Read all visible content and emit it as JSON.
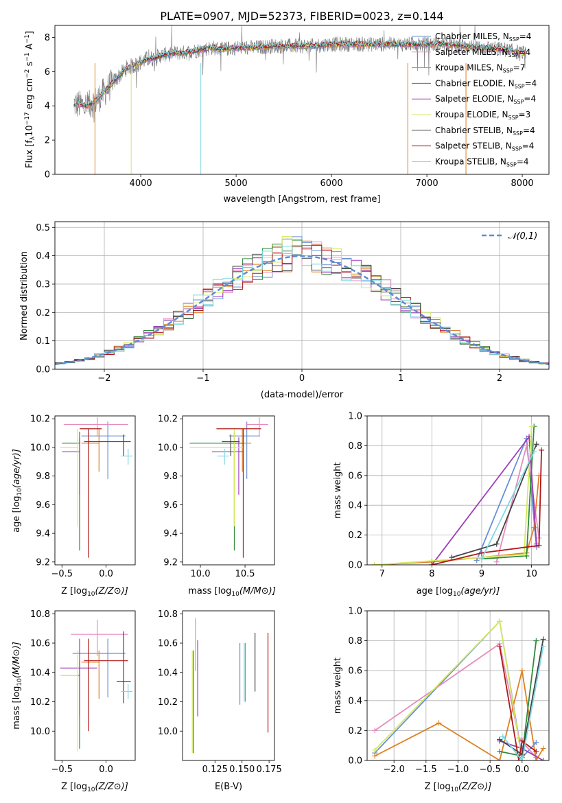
{
  "title": "PLATE=0907, MJD=52373, FIBERID=0023, z=0.144",
  "colors": {
    "Chabrier MILES": "#6a8fd6",
    "Salpeter MILES": "#e58cbf",
    "Kroupa MILES": "#dd8022",
    "Chabrier ELODIE": "#2f8a3a",
    "Salpeter ELODIE": "#9d3bb8",
    "Kroupa ELODIE": "#d5ea60",
    "Chabrier STELIB": "#444444",
    "Salpeter STELIB": "#b01818",
    "Kroupa STELIB": "#7fd9e2",
    "data": "#808080",
    "gaussian": "#5b8bd4"
  },
  "chart_data": [
    {
      "type": "line",
      "panel": "spectrum",
      "xlabel": "wavelength [Angstrom, rest frame]",
      "ylabel_parts": [
        "Flux [f",
        "λ",
        "10",
        "−17",
        " erg cm",
        "−2",
        " s",
        "−1",
        " A",
        "−1",
        "]"
      ],
      "xlim": [
        3100,
        8280
      ],
      "ylim": [
        0,
        8.7
      ],
      "xticks": [
        4000,
        5000,
        6000,
        7000,
        8000
      ],
      "yticks": [
        0,
        2,
        4,
        6,
        8
      ],
      "legend_position": "upper-right",
      "legend": [
        {
          "name": "Chabrier MILES, N",
          "sub": "SSP",
          "tail": "=4"
        },
        {
          "name": "Salpeter MILES, N",
          "sub": "SSP",
          "tail": "=4"
        },
        {
          "name": "Kroupa MILES, N",
          "sub": "SSP",
          "tail": "=7"
        },
        {
          "name": "Chabrier ELODIE, N",
          "sub": "SSP",
          "tail": "=4"
        },
        {
          "name": "Salpeter ELODIE, N",
          "sub": "SSP",
          "tail": "=4"
        },
        {
          "name": "Kroupa ELODIE, N",
          "sub": "SSP",
          "tail": "=3"
        },
        {
          "name": "Chabrier STELIB, N",
          "sub": "SSP",
          "tail": "=4"
        },
        {
          "name": "Salpeter STELIB, N",
          "sub": "SSP",
          "tail": "=4"
        },
        {
          "name": "Kroupa STELIB, N",
          "sub": "SSP",
          "tail": "=4"
        }
      ],
      "continuum": {
        "x": [
          3300,
          3450,
          3550,
          3650,
          3750,
          3850,
          3950,
          4050,
          4150,
          4250,
          4350,
          4450,
          4550,
          4650,
          4750,
          4850,
          5000,
          5200,
          5400,
          5600,
          5800,
          6000,
          6200,
          6400,
          6600,
          6800,
          7000,
          7200,
          7400,
          7600,
          7800,
          8000
        ],
        "y": [
          4.1,
          4.0,
          4.4,
          5.0,
          5.6,
          6.2,
          6.4,
          6.7,
          6.8,
          7.0,
          7.1,
          7.1,
          7.2,
          7.3,
          7.4,
          7.3,
          7.4,
          7.4,
          7.5,
          7.5,
          7.5,
          7.6,
          7.6,
          7.6,
          7.6,
          7.6,
          7.6,
          7.6,
          7.5,
          7.4,
          7.3,
          7.1
        ]
      }
    },
    {
      "type": "histogram",
      "panel": "residuals",
      "xlabel": "(data-model)/error",
      "ylabel": "Normed distribution",
      "xlim": [
        -2.5,
        2.5
      ],
      "ylim": [
        0,
        0.52
      ],
      "xticks": [
        -2,
        -1,
        0,
        1,
        2
      ],
      "yticks": [
        0.0,
        0.1,
        0.2,
        0.3,
        0.4,
        0.5
      ],
      "bin_width": 0.1,
      "legend": "𝒩(0,1)",
      "legend_position": "upper-right",
      "grid": true
    },
    {
      "type": "errorbar",
      "panel": "age-vs-Z",
      "xlabel": "Z [log10(Z/Z⊙)]",
      "ylabel": "age  [log10(age/yr)]",
      "xlim": [
        -0.58,
        0.33
      ],
      "ylim": [
        9.18,
        10.22
      ],
      "xticks": [
        -0.5,
        0.0
      ],
      "yticks": [
        9.2,
        9.4,
        9.6,
        9.8,
        10.0,
        10.2
      ],
      "points": [
        {
          "model": "Chabrier MILES",
          "x": 0.02,
          "xerr": [
            0.3,
            0.2
          ],
          "y": 10.08,
          "yerr": [
            0.3,
            0.1
          ]
        },
        {
          "model": "Salpeter MILES",
          "x": -0.1,
          "xerr": [
            0.38,
            0.35
          ],
          "y": 10.16,
          "yerr": [
            0.08,
            0.05
          ]
        },
        {
          "model": "Kroupa MILES",
          "x": -0.08,
          "xerr": [
            0.2,
            0.0
          ],
          "y": 10.03,
          "yerr": [
            0.2,
            0.1
          ]
        },
        {
          "model": "Chabrier ELODIE",
          "x": -0.3,
          "xerr": [
            0.2,
            0.0
          ],
          "y": 10.03,
          "yerr": [
            0.75,
            0.08
          ]
        },
        {
          "model": "Salpeter ELODIE",
          "x": -0.3,
          "xerr": [
            0.2,
            0.0
          ],
          "y": 9.97,
          "yerr": [
            0.3,
            0.1
          ]
        },
        {
          "model": "Kroupa ELODIE",
          "x": -0.32,
          "xerr": [
            0.2,
            0.0
          ],
          "y": 10.0,
          "yerr": [
            0.55,
            0.13
          ]
        },
        {
          "model": "Chabrier STELIB",
          "x": 0.2,
          "xerr": [
            0.45,
            0.08
          ],
          "y": 10.04,
          "yerr": [
            0.1,
            0.05
          ]
        },
        {
          "model": "Salpeter STELIB",
          "x": -0.2,
          "xerr": [
            0.1,
            0.15
          ],
          "y": 10.13,
          "yerr": [
            0.9,
            0.0
          ]
        },
        {
          "model": "Kroupa STELIB",
          "x": 0.25,
          "xerr": [
            0.08,
            0.05
          ],
          "y": 9.94,
          "yerr": [
            0.06,
            0.05
          ]
        }
      ]
    },
    {
      "type": "errorbar",
      "panel": "age-vs-mass",
      "xlabel": "mass [log10(M/M⊙)]",
      "ylabel": "",
      "xlim": [
        9.8,
        10.83
      ],
      "ylim": [
        9.18,
        10.22
      ],
      "xticks": [
        10.0,
        10.5
      ],
      "yticks": [
        9.2,
        9.4,
        9.6,
        9.8,
        10.0,
        10.2
      ],
      "points": [
        {
          "model": "Chabrier MILES",
          "x": 10.52,
          "xerr": [
            0.2,
            0.15
          ],
          "y": 10.08,
          "yerr": [
            0.3,
            0.1
          ]
        },
        {
          "model": "Salpeter MILES",
          "x": 10.66,
          "xerr": [
            0.15,
            0.1
          ],
          "y": 10.16,
          "yerr": [
            0.08,
            0.05
          ]
        },
        {
          "model": "Kroupa MILES",
          "x": 10.47,
          "xerr": [
            0.1,
            0.1
          ],
          "y": 10.03,
          "yerr": [
            0.2,
            0.1
          ]
        },
        {
          "model": "Chabrier ELODIE",
          "x": 10.38,
          "xerr": [
            0.5,
            0.1
          ],
          "y": 10.03,
          "yerr": [
            0.75,
            0.08
          ]
        },
        {
          "model": "Salpeter ELODIE",
          "x": 10.43,
          "xerr": [
            0.3,
            0.05
          ],
          "y": 9.97,
          "yerr": [
            0.3,
            0.1
          ]
        },
        {
          "model": "Kroupa ELODIE",
          "x": 10.38,
          "xerr": [
            0.5,
            0.1
          ],
          "y": 10.0,
          "yerr": [
            0.55,
            0.13
          ]
        },
        {
          "model": "Chabrier STELIB",
          "x": 10.34,
          "xerr": [
            0.1,
            0.1
          ],
          "y": 10.04,
          "yerr": [
            0.1,
            0.05
          ]
        },
        {
          "model": "Salpeter STELIB",
          "x": 10.48,
          "xerr": [
            0.3,
            0.2
          ],
          "y": 10.13,
          "yerr": [
            0.9,
            0.0
          ]
        },
        {
          "model": "Kroupa STELIB",
          "x": 10.27,
          "xerr": [
            0.08,
            0.05
          ],
          "y": 9.94,
          "yerr": [
            0.06,
            0.05
          ]
        }
      ]
    },
    {
      "type": "line",
      "panel": "massweight-vs-age",
      "xlabel": "age  [log10(age/yr)]",
      "ylabel": "mass weight",
      "xlim": [
        6.7,
        10.35
      ],
      "ylim": [
        0,
        1.0
      ],
      "xticks": [
        7,
        8,
        9,
        10
      ],
      "yticks": [
        0.0,
        0.2,
        0.4,
        0.6,
        0.8,
        1.0
      ],
      "grid": true,
      "series": [
        {
          "model": "Chabrier MILES",
          "x": [
            8.9,
            9.9,
            10.1
          ],
          "y": [
            0.03,
            0.85,
            0.12
          ]
        },
        {
          "model": "Salpeter MILES",
          "x": [
            9.3,
            9.9,
            10.15
          ],
          "y": [
            0.02,
            0.8,
            0.18
          ]
        },
        {
          "model": "Kroupa MILES",
          "x": [
            6.85,
            8.0,
            9.0,
            9.9,
            10.05,
            10.15
          ],
          "y": [
            0.0,
            0.02,
            0.05,
            0.08,
            0.25,
            0.6
          ]
        },
        {
          "model": "Chabrier ELODIE",
          "x": [
            9.0,
            9.9,
            10.05
          ],
          "y": [
            0.04,
            0.06,
            0.93
          ]
        },
        {
          "model": "Salpeter ELODIE",
          "x": [
            8.0,
            9.95,
            10.1
          ],
          "y": [
            0.0,
            0.86,
            0.14
          ]
        },
        {
          "model": "Kroupa ELODIE",
          "x": [
            6.85,
            9.85,
            10.0
          ],
          "y": [
            0.0,
            0.07,
            0.93
          ]
        },
        {
          "model": "Chabrier STELIB",
          "x": [
            8.4,
            9.3,
            10.1
          ],
          "y": [
            0.05,
            0.14,
            0.81
          ]
        },
        {
          "model": "Salpeter STELIB",
          "x": [
            8.0,
            9.0,
            10.15,
            10.2
          ],
          "y": [
            0.0,
            0.08,
            0.13,
            0.77
          ]
        },
        {
          "model": "Kroupa STELIB",
          "x": [
            9.0,
            10.05
          ],
          "y": [
            0.04,
            0.76
          ]
        }
      ]
    },
    {
      "type": "errorbar",
      "panel": "mass-vs-Z",
      "xlabel": "Z [log10(Z/Z⊙)]",
      "ylabel": "mass [log10(M/M⊙)]",
      "xlim": [
        -0.58,
        0.33
      ],
      "ylim": [
        9.8,
        10.82
      ],
      "xticks": [
        -0.5,
        0.0
      ],
      "yticks": [
        10.0,
        10.2,
        10.4,
        10.6,
        10.8
      ],
      "points": [
        {
          "model": "Chabrier MILES",
          "x": 0.02,
          "xerr": [
            0.4,
            0.2
          ],
          "y": 10.53,
          "yerr": [
            0.3,
            0.1
          ]
        },
        {
          "model": "Salpeter MILES",
          "x": -0.1,
          "xerr": [
            0.3,
            0.35
          ],
          "y": 10.66,
          "yerr": [
            0.15,
            0.1
          ]
        },
        {
          "model": "Kroupa MILES",
          "x": -0.08,
          "xerr": [
            0.2,
            0.0
          ],
          "y": 10.47,
          "yerr": [
            0.25,
            0.08
          ]
        },
        {
          "model": "Chabrier ELODIE",
          "x": -0.3,
          "xerr": [
            0.2,
            0.0
          ],
          "y": 10.38,
          "yerr": [
            0.5,
            0.1
          ]
        },
        {
          "model": "Salpeter ELODIE",
          "x": -0.3,
          "xerr": [
            0.22,
            0.2
          ],
          "y": 10.43,
          "yerr": [
            0.33,
            0.2
          ]
        },
        {
          "model": "Kroupa ELODIE",
          "x": -0.32,
          "xerr": [
            0.2,
            0.0
          ],
          "y": 10.38,
          "yerr": [
            0.52,
            0.17
          ]
        },
        {
          "model": "Chabrier STELIB",
          "x": 0.2,
          "xerr": [
            0.08,
            0.08
          ],
          "y": 10.34,
          "yerr": [
            0.15,
            0.34
          ]
        },
        {
          "model": "Salpeter STELIB",
          "x": -0.2,
          "xerr": [
            0.05,
            0.45
          ],
          "y": 10.48,
          "yerr": [
            0.48,
            0.15
          ]
        },
        {
          "model": "Kroupa STELIB",
          "x": 0.25,
          "xerr": [
            0.08,
            0.05
          ],
          "y": 10.27,
          "yerr": [
            0.05,
            0.05
          ]
        }
      ]
    },
    {
      "type": "errorbar",
      "panel": "mass-vs-EBV",
      "xlabel": "E(B-V)",
      "ylabel": "",
      "xlim": [
        0.095,
        0.18
      ],
      "ylim": [
        9.8,
        10.82
      ],
      "xticks": [
        0.125,
        0.15,
        0.175
      ],
      "yticks": [
        10.0,
        10.2,
        10.4,
        10.6,
        10.8
      ],
      "points": [
        {
          "model": "Chabrier MILES",
          "x": 0.148,
          "y": 10.38,
          "yerr": [
            0.2,
            0.22
          ]
        },
        {
          "model": "Salpeter MILES",
          "x": 0.107,
          "y": 10.66,
          "yerr": [
            0.25,
            0.11
          ]
        },
        {
          "model": "Kroupa MILES",
          "x": 0.153,
          "y": 10.4,
          "yerr": [
            0.2,
            0.2
          ]
        },
        {
          "model": "Chabrier ELODIE",
          "x": 0.105,
          "y": 10.2,
          "yerr": [
            0.35,
            0.35
          ]
        },
        {
          "model": "Salpeter ELODIE",
          "x": 0.109,
          "y": 10.36,
          "yerr": [
            0.26,
            0.26
          ]
        },
        {
          "model": "Kroupa ELODIE",
          "x": 0.104,
          "y": 10.2,
          "yerr": [
            0.35,
            0.35
          ]
        },
        {
          "model": "Chabrier STELIB",
          "x": 0.162,
          "y": 10.47,
          "yerr": [
            0.2,
            0.2
          ]
        },
        {
          "model": "Salpeter STELIB",
          "x": 0.174,
          "y": 10.33,
          "yerr": [
            0.34,
            0.34
          ]
        },
        {
          "model": "Kroupa STELIB",
          "x": 0.152,
          "y": 10.4,
          "yerr": [
            0.2,
            0.2
          ]
        }
      ]
    },
    {
      "type": "line",
      "panel": "massweight-vs-Z",
      "xlabel": "Z [log10(Z/Z⊙)]",
      "ylabel": "mass weight",
      "xlim": [
        -2.42,
        0.42
      ],
      "ylim": [
        0,
        1.0
      ],
      "xticks": [
        -2.0,
        -1.5,
        -1.0,
        -0.5,
        0.0
      ],
      "yticks": [
        0.0,
        0.2,
        0.4,
        0.6,
        0.8,
        1.0
      ],
      "grid": true,
      "series": [
        {
          "model": "Chabrier MILES",
          "x": [
            -2.3,
            -0.35,
            0.0,
            0.22
          ],
          "y": [
            0.05,
            0.93,
            0.02,
            0.12
          ]
        },
        {
          "model": "Salpeter MILES",
          "x": [
            -2.3,
            -0.35,
            -0.05,
            0.22
          ],
          "y": [
            0.2,
            0.78,
            0.15,
            0.02
          ]
        },
        {
          "model": "Kroupa MILES",
          "x": [
            -2.3,
            -1.3,
            -0.35,
            0.0,
            0.22,
            0.33
          ],
          "y": [
            0.03,
            0.25,
            0.0,
            0.6,
            0.0,
            0.08
          ]
        },
        {
          "model": "Chabrier ELODIE",
          "x": [
            -0.35,
            0.0,
            0.22
          ],
          "y": [
            0.06,
            0.03,
            0.8
          ]
        },
        {
          "model": "Salpeter ELODIE",
          "x": [
            -0.35,
            0.0,
            0.33
          ],
          "y": [
            0.13,
            0.08,
            0.0
          ]
        },
        {
          "model": "Kroupa ELODIE",
          "x": [
            -2.3,
            -0.35,
            0.0
          ],
          "y": [
            0.07,
            0.93,
            0.0
          ]
        },
        {
          "model": "Chabrier STELIB",
          "x": [
            -0.35,
            0.0,
            0.33
          ],
          "y": [
            0.14,
            0.04,
            0.81
          ]
        },
        {
          "model": "Salpeter STELIB",
          "x": [
            -0.35,
            -0.05,
            0.0,
            0.22
          ],
          "y": [
            0.76,
            0.0,
            0.13,
            0.06
          ]
        },
        {
          "model": "Kroupa STELIB",
          "x": [
            -0.3,
            0.0,
            0.33
          ],
          "y": [
            0.16,
            0.0,
            0.76
          ]
        }
      ]
    }
  ]
}
